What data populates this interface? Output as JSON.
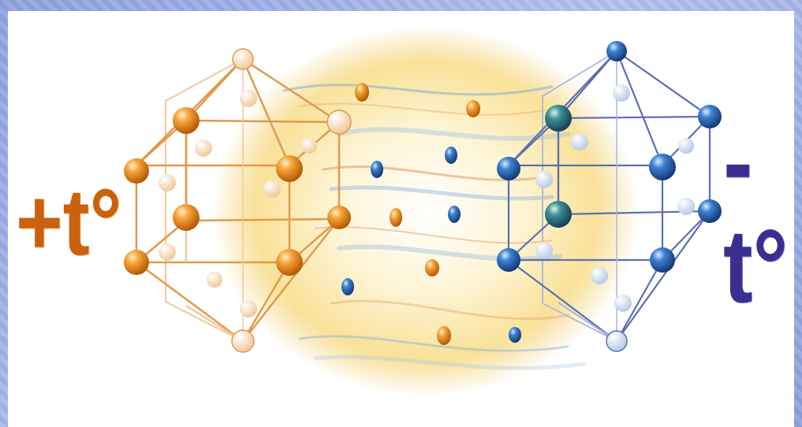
{
  "labels": {
    "hot": "+t°",
    "cold": "-t°"
  },
  "colors": {
    "warm_atom": "#e8841b",
    "warm_frame": "#e19a4b",
    "cold_atom": "#2f63b8",
    "cold_frame": "#5b6fb0",
    "glow": "#fbe6a2",
    "background": "#a4b5ea"
  },
  "icons": {
    "hot_lattice": "hexagonal-crystal-lattice-icon",
    "cold_lattice": "hexagonal-crystal-lattice-icon"
  }
}
